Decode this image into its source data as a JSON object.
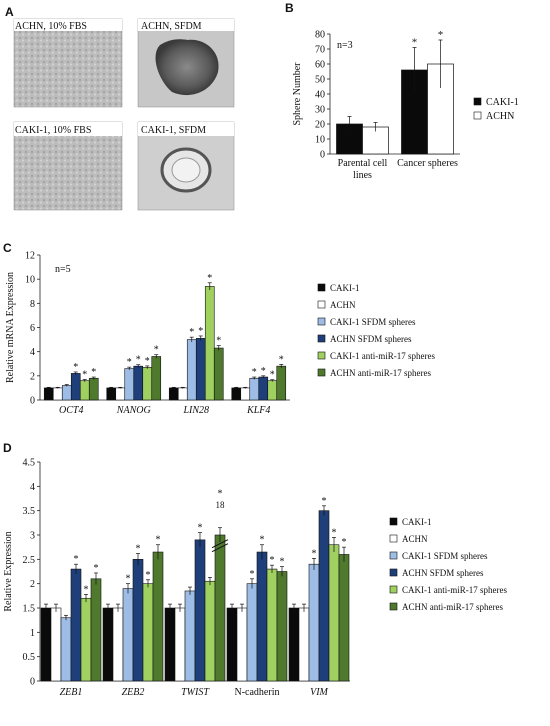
{
  "colors": {
    "black": "#0a0a0a",
    "white": "#ffffff",
    "light_blue": "#9dbde6",
    "dark_blue": "#1f3f7a",
    "light_green": "#9fd060",
    "dark_green": "#4f7a2e"
  },
  "panel_a": {
    "label": "A",
    "images": [
      {
        "label": "ACHN, 10% FBS"
      },
      {
        "label": "ACHN, SFDM"
      },
      {
        "label": "CAKI-1, 10% FBS"
      },
      {
        "label": "CAKI-1, SFDM"
      }
    ]
  },
  "chart_data": [
    {
      "panel": "B",
      "type": "bar",
      "title": "",
      "note": "n=3",
      "xlabel": "",
      "ylabel": "Sphere Number",
      "ylim": [
        0,
        80
      ],
      "yticks": [
        0,
        10,
        20,
        30,
        40,
        50,
        60,
        70,
        80
      ],
      "categories": [
        "Parental cell lines",
        "Cancer spheres"
      ],
      "series": [
        {
          "name": "CAKI-1",
          "values": [
            20,
            56
          ],
          "errors": [
            5,
            15
          ],
          "color_key": "black"
        },
        {
          "name": "ACHN",
          "values": [
            18,
            60
          ],
          "errors": [
            3,
            16
          ],
          "color_key": "white"
        }
      ],
      "significance": [
        "",
        "*"
      ],
      "legend": "right",
      "grid": false
    },
    {
      "panel": "C",
      "type": "bar",
      "title": "",
      "note": "n=5",
      "xlabel": "",
      "ylabel": "Relative mRNA Expression",
      "ylim": [
        0,
        12
      ],
      "yticks": [
        0,
        2,
        4,
        6,
        8,
        10,
        12
      ],
      "categories": [
        "OCT4",
        "NANOG",
        "LIN28",
        "KLF4"
      ],
      "series": [
        {
          "name": "CAKI-1",
          "values": [
            1.0,
            1.0,
            1.0,
            1.0
          ],
          "errors": [
            0.05,
            0.05,
            0.05,
            0.05
          ],
          "color_key": "black"
        },
        {
          "name": "ACHN",
          "values": [
            1.0,
            1.0,
            1.0,
            1.0
          ],
          "errors": [
            0.05,
            0.05,
            0.05,
            0.05
          ],
          "color_key": "white"
        },
        {
          "name": "CAKI-1 SFDM spheres",
          "values": [
            1.2,
            2.6,
            5.0,
            1.8
          ],
          "errors": [
            0.08,
            0.12,
            0.2,
            0.1
          ],
          "color_key": "light_blue"
        },
        {
          "name": "ACHN SFDM spheres",
          "values": [
            2.2,
            2.8,
            5.1,
            1.9
          ],
          "errors": [
            0.12,
            0.12,
            0.2,
            0.1
          ],
          "color_key": "dark_blue"
        },
        {
          "name": "CAKI-1 anti-miR-17 spheres",
          "values": [
            1.6,
            2.7,
            9.4,
            1.6
          ],
          "errors": [
            0.1,
            0.12,
            0.3,
            0.08
          ],
          "color_key": "light_green"
        },
        {
          "name": "ACHN anti-miR-17 spheres",
          "values": [
            1.8,
            3.6,
            4.3,
            2.8
          ],
          "errors": [
            0.1,
            0.15,
            0.2,
            0.15
          ],
          "color_key": "dark_green"
        }
      ],
      "legend": "right",
      "grid": false
    },
    {
      "panel": "D",
      "type": "bar",
      "title": "",
      "xlabel": "",
      "ylabel": "Relative Expression",
      "ylim": [
        0,
        4.5
      ],
      "yticks": [
        "0",
        "0.5",
        "1",
        "1.5",
        "2",
        "2.5",
        "3",
        "3.5",
        "4",
        "4.5"
      ],
      "categories": [
        "ZEB1",
        "ZEB2",
        "TWIST",
        "N-cadherin",
        "VIM"
      ],
      "series": [
        {
          "name": "CAKI-1",
          "values": [
            1.5,
            1.5,
            1.5,
            1.5,
            1.5
          ],
          "errors": [
            0.08,
            0.08,
            0.08,
            0.08,
            0.08
          ],
          "color_key": "black"
        },
        {
          "name": "ACHN",
          "values": [
            1.5,
            1.5,
            1.5,
            1.5,
            1.5
          ],
          "errors": [
            0.08,
            0.08,
            0.08,
            0.08,
            0.08
          ],
          "color_key": "white"
        },
        {
          "name": "CAKI-1 SFDM spheres",
          "values": [
            1.3,
            1.9,
            1.85,
            2.0,
            2.4
          ],
          "errors": [
            0.05,
            0.1,
            0.08,
            0.1,
            0.12
          ],
          "color_key": "light_blue"
        },
        {
          "name": "ACHN SFDM spheres",
          "values": [
            2.3,
            2.5,
            2.9,
            2.65,
            3.5
          ],
          "errors": [
            0.1,
            0.12,
            0.15,
            0.15,
            0.1
          ],
          "color_key": "dark_blue"
        },
        {
          "name": "CAKI-1 anti-miR-17 spheres",
          "values": [
            1.7,
            2.0,
            2.05,
            2.3,
            2.8
          ],
          "errors": [
            0.08,
            0.08,
            0.08,
            0.08,
            0.15
          ],
          "color_key": "light_green"
        },
        {
          "name": "ACHN anti-miR-17 spheres",
          "values": [
            2.1,
            2.65,
            3.0,
            2.25,
            2.6
          ],
          "errors": [
            0.12,
            0.15,
            0.15,
            0.1,
            0.15
          ],
          "color_key": "dark_green"
        }
      ],
      "break_label": "18",
      "legend": "right",
      "grid": false
    }
  ]
}
